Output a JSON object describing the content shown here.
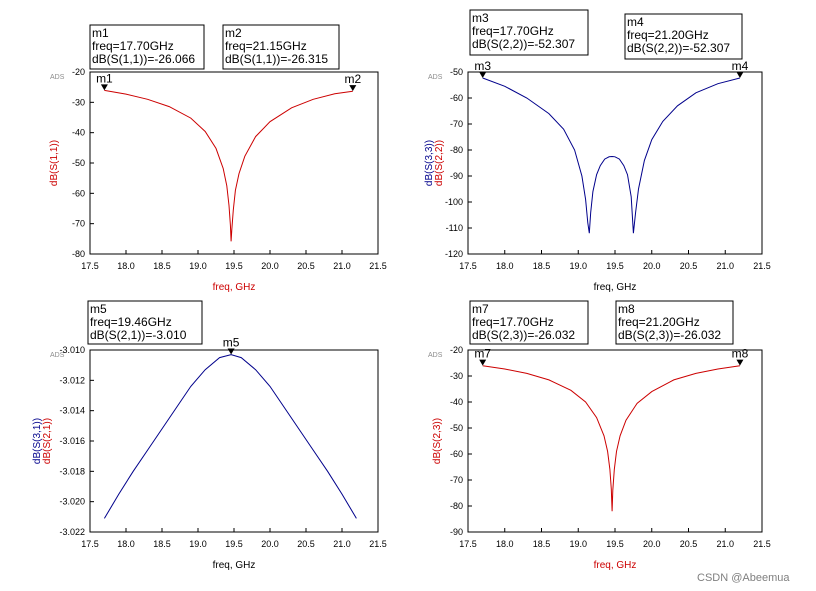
{
  "watermark": "CSDN @Abeemua",
  "vendor_tag": "ADS",
  "chart_data": [
    {
      "type": "line",
      "xlabel": "freq, GHz",
      "xlabel_color": "#cc0000",
      "xlim": [
        17.5,
        21.5
      ],
      "xticks": [
        "17.5",
        "18.0",
        "18.5",
        "19.0",
        "19.5",
        "20.0",
        "20.5",
        "21.0",
        "21.5"
      ],
      "ylim": [
        -80,
        -20
      ],
      "yticks": [
        "-20",
        "-30",
        "-40",
        "-50",
        "-60",
        "-70",
        "-80"
      ],
      "ylabels": [
        {
          "text": "dB(S(1,1))",
          "color": "#cc0000"
        }
      ],
      "series": [
        {
          "name": "dB(S(1,1))",
          "color": "#cc0000",
          "x": [
            17.7,
            18.0,
            18.3,
            18.6,
            18.9,
            19.1,
            19.25,
            19.35,
            19.4,
            19.43,
            19.45,
            19.46,
            19.47,
            19.49,
            19.52,
            19.57,
            19.65,
            19.8,
            20.0,
            20.3,
            20.6,
            20.9,
            21.15
          ],
          "y": [
            -26.066,
            -27.3,
            -29.0,
            -31.4,
            -35.2,
            -39.6,
            -45.2,
            -51.8,
            -57.5,
            -64.0,
            -70.5,
            -75.8,
            -72.0,
            -65.5,
            -59.0,
            -53.5,
            -47.8,
            -41.3,
            -36.4,
            -31.8,
            -29.0,
            -27.2,
            -26.315
          ]
        }
      ],
      "markers": [
        {
          "label": "m1",
          "x": 17.7,
          "y": -26.066,
          "lines": [
            "m1",
            "freq=17.70GHz",
            "dB(S(1,1))=-26.066"
          ]
        },
        {
          "label": "m2",
          "x": 21.15,
          "y": -26.315,
          "lines": [
            "m2",
            "freq=21.15GHz",
            "dB(S(1,1))=-26.315"
          ]
        }
      ]
    },
    {
      "type": "line",
      "xlabel": "freq, GHz",
      "xlabel_color": "#000000",
      "xlim": [
        17.5,
        21.5
      ],
      "xticks": [
        "17.5",
        "18.0",
        "18.5",
        "19.0",
        "19.5",
        "20.0",
        "20.5",
        "21.0",
        "21.5"
      ],
      "ylim": [
        -120,
        -50
      ],
      "yticks": [
        "-50",
        "-60",
        "-70",
        "-80",
        "-90",
        "-100",
        "-110",
        "-120"
      ],
      "ylabels": [
        {
          "text": "dB(S(3,3))",
          "color": "#00008b"
        },
        {
          "text": "dB(S(2,2))",
          "color": "#cc0000"
        }
      ],
      "series": [
        {
          "name": "dB(S(2,2))",
          "color": "#00008b",
          "x": [
            17.7,
            18.0,
            18.3,
            18.6,
            18.8,
            18.95,
            19.05,
            19.1,
            19.13,
            19.15,
            19.17,
            19.2,
            19.25,
            19.3,
            19.36,
            19.42,
            19.46,
            19.5,
            19.56,
            19.62,
            19.67,
            19.72,
            19.75,
            19.78,
            19.82,
            19.9,
            20.0,
            20.15,
            20.35,
            20.6,
            20.9,
            21.2
          ],
          "y": [
            -52.307,
            -55.5,
            -60.0,
            -66.0,
            -72.0,
            -80.0,
            -90.0,
            -99.0,
            -108.0,
            -112.0,
            -104.0,
            -96.0,
            -89.5,
            -86.0,
            -83.5,
            -82.6,
            -82.5,
            -82.6,
            -83.5,
            -86.0,
            -89.5,
            -98.0,
            -112.0,
            -104.0,
            -95.0,
            -84.0,
            -76.0,
            -69.0,
            -63.0,
            -58.0,
            -54.5,
            -52.307
          ]
        }
      ],
      "markers": [
        {
          "label": "m3",
          "x": 17.7,
          "y": -52.307,
          "lines": [
            "m3",
            "freq=17.70GHz",
            "dB(S(2,2))=-52.307"
          ]
        },
        {
          "label": "m4",
          "x": 21.2,
          "y": -52.307,
          "lines": [
            "m4",
            "freq=21.20GHz",
            "dB(S(2,2))=-52.307"
          ]
        }
      ]
    },
    {
      "type": "line",
      "xlabel": "freq, GHz",
      "xlabel_color": "#000000",
      "xlim": [
        17.5,
        21.5
      ],
      "xticks": [
        "17.5",
        "18.0",
        "18.5",
        "19.0",
        "19.5",
        "20.0",
        "20.5",
        "21.0",
        "21.5"
      ],
      "ylim": [
        -3.022,
        -3.01
      ],
      "yticks": [
        "-3.010",
        "-3.012",
        "-3.014",
        "-3.016",
        "-3.018",
        "-3.020",
        "-3.022"
      ],
      "ylabels": [
        {
          "text": "dB(S(3,1))",
          "color": "#00008b"
        },
        {
          "text": "dB(S(2,1))",
          "color": "#cc0000"
        }
      ],
      "series": [
        {
          "name": "dB(S(2,1))",
          "color": "#00008b",
          "x": [
            17.7,
            17.9,
            18.1,
            18.3,
            18.5,
            18.7,
            18.9,
            19.1,
            19.3,
            19.46,
            19.6,
            19.8,
            20.0,
            20.2,
            20.4,
            20.6,
            20.8,
            21.0,
            21.2
          ],
          "y": [
            -3.0211,
            -3.0195,
            -3.018,
            -3.0166,
            -3.0152,
            -3.0138,
            -3.0124,
            -3.0113,
            -3.0105,
            -3.0103,
            -3.0105,
            -3.0113,
            -3.0124,
            -3.0138,
            -3.0152,
            -3.0166,
            -3.018,
            -3.0195,
            -3.0211
          ]
        }
      ],
      "markers": [
        {
          "label": "m5",
          "x": 19.46,
          "y": -3.0103,
          "lines": [
            "m5",
            "freq=19.46GHz",
            "dB(S(2,1))=-3.010"
          ]
        }
      ]
    },
    {
      "type": "line",
      "xlabel": "freq, GHz",
      "xlabel_color": "#cc0000",
      "xlim": [
        17.5,
        21.5
      ],
      "xticks": [
        "17.5",
        "18.0",
        "18.5",
        "19.0",
        "19.5",
        "20.0",
        "20.5",
        "21.0",
        "21.5"
      ],
      "ylim": [
        -90,
        -20
      ],
      "yticks": [
        "-20",
        "-30",
        "-40",
        "-50",
        "-60",
        "-70",
        "-80",
        "-90"
      ],
      "ylabels": [
        {
          "text": "dB(S(2,3))",
          "color": "#cc0000"
        }
      ],
      "series": [
        {
          "name": "dB(S(2,3))",
          "color": "#cc0000",
          "x": [
            17.7,
            18.0,
            18.3,
            18.6,
            18.9,
            19.1,
            19.25,
            19.35,
            19.4,
            19.43,
            19.45,
            19.46,
            19.47,
            19.49,
            19.52,
            19.57,
            19.65,
            19.8,
            20.0,
            20.3,
            20.6,
            20.9,
            21.2
          ],
          "y": [
            -26.032,
            -27.3,
            -29.0,
            -31.5,
            -35.5,
            -40.0,
            -46.0,
            -53.0,
            -59.0,
            -66.0,
            -73.5,
            -82.0,
            -74.0,
            -66.0,
            -59.0,
            -53.0,
            -47.0,
            -40.5,
            -36.0,
            -31.5,
            -29.0,
            -27.3,
            -26.032
          ]
        }
      ],
      "markers": [
        {
          "label": "m7",
          "x": 17.7,
          "y": -26.032,
          "lines": [
            "m7",
            "freq=17.70GHz",
            "dB(S(2,3))=-26.032"
          ]
        },
        {
          "label": "m8",
          "x": 21.2,
          "y": -26.032,
          "lines": [
            "m8",
            "freq=21.20GHz",
            "dB(S(2,3))=-26.032"
          ]
        }
      ]
    }
  ]
}
